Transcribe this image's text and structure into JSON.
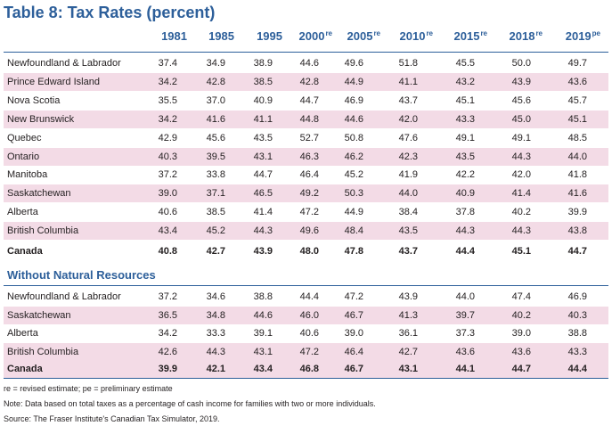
{
  "title": "Table 8: Tax Rates (percent)",
  "columns": [
    {
      "year": "1981",
      "sup": ""
    },
    {
      "year": "1985",
      "sup": ""
    },
    {
      "year": "1995",
      "sup": ""
    },
    {
      "year": "2000",
      "sup": "re"
    },
    {
      "year": "2005",
      "sup": "re"
    },
    {
      "year": "2010",
      "sup": "re"
    },
    {
      "year": "2015",
      "sup": "re"
    },
    {
      "year": "2018",
      "sup": "re"
    },
    {
      "year": "2019",
      "sup": "pe"
    }
  ],
  "rows": [
    {
      "label": "Newfoundland & Labrador",
      "values": [
        "37.4",
        "34.9",
        "38.9",
        "44.6",
        "49.6",
        "51.8",
        "45.5",
        "50.0",
        "49.7"
      ]
    },
    {
      "label": "Prince Edward Island",
      "values": [
        "34.2",
        "42.8",
        "38.5",
        "42.8",
        "44.9",
        "41.1",
        "43.2",
        "43.9",
        "43.6"
      ]
    },
    {
      "label": "Nova Scotia",
      "values": [
        "35.5",
        "37.0",
        "40.9",
        "44.7",
        "46.9",
        "43.7",
        "45.1",
        "45.6",
        "45.7"
      ]
    },
    {
      "label": "New Brunswick",
      "values": [
        "34.2",
        "41.6",
        "41.1",
        "44.8",
        "44.6",
        "42.0",
        "43.3",
        "45.0",
        "45.1"
      ]
    },
    {
      "label": "Quebec",
      "values": [
        "42.9",
        "45.6",
        "43.5",
        "52.7",
        "50.8",
        "47.6",
        "49.1",
        "49.1",
        "48.5"
      ]
    },
    {
      "label": "Ontario",
      "values": [
        "40.3",
        "39.5",
        "43.1",
        "46.3",
        "46.2",
        "42.3",
        "43.5",
        "44.3",
        "44.0"
      ]
    },
    {
      "label": "Manitoba",
      "values": [
        "37.2",
        "33.8",
        "44.7",
        "46.4",
        "45.2",
        "41.9",
        "42.2",
        "42.0",
        "41.8"
      ]
    },
    {
      "label": "Saskatchewan",
      "values": [
        "39.0",
        "37.1",
        "46.5",
        "49.2",
        "50.3",
        "44.0",
        "40.9",
        "41.4",
        "41.6"
      ]
    },
    {
      "label": "Alberta",
      "values": [
        "40.6",
        "38.5",
        "41.4",
        "47.2",
        "44.9",
        "38.4",
        "37.8",
        "40.2",
        "39.9"
      ]
    },
    {
      "label": "British Columbia",
      "values": [
        "43.4",
        "45.2",
        "44.3",
        "49.6",
        "48.4",
        "43.5",
        "44.3",
        "44.3",
        "43.8"
      ]
    }
  ],
  "total": {
    "label": "Canada",
    "values": [
      "40.8",
      "42.7",
      "43.9",
      "48.0",
      "47.8",
      "43.7",
      "44.4",
      "45.1",
      "44.7"
    ]
  },
  "section_title": "Without Natural Resources",
  "rows2": [
    {
      "label": "Newfoundland & Labrador",
      "values": [
        "37.2",
        "34.6",
        "38.8",
        "44.4",
        "47.2",
        "43.9",
        "44.0",
        "47.4",
        "46.9"
      ]
    },
    {
      "label": "Saskatchewan",
      "values": [
        "36.5",
        "34.8",
        "44.6",
        "46.0",
        "46.7",
        "41.3",
        "39.7",
        "40.2",
        "40.3"
      ]
    },
    {
      "label": "Alberta",
      "values": [
        "34.2",
        "33.3",
        "39.1",
        "40.6",
        "39.0",
        "36.1",
        "37.3",
        "39.0",
        "38.8"
      ]
    },
    {
      "label": "British Columbia",
      "values": [
        "42.6",
        "44.3",
        "43.1",
        "47.2",
        "46.4",
        "42.7",
        "43.6",
        "43.6",
        "43.3"
      ]
    }
  ],
  "total2": {
    "label": "Canada",
    "values": [
      "39.9",
      "42.1",
      "43.4",
      "46.8",
      "46.7",
      "43.1",
      "44.1",
      "44.7",
      "44.4"
    ]
  },
  "notes": [
    "re = revised estimate; pe = preliminary estimate",
    "Note: Data based on total taxes as a percentage of cash income for families with two or more individuals.",
    "Source: The Fraser Institute's Canadian Tax Simulator, 2019."
  ]
}
